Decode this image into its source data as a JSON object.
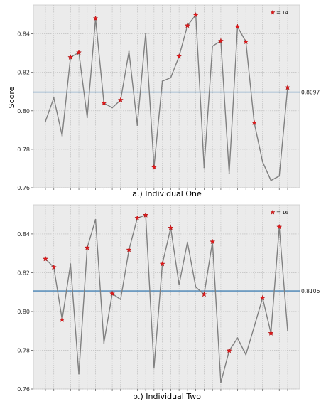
{
  "chart_data": [
    {
      "type": "line",
      "xlabel": "a.) Individual One",
      "ylabel": "Score",
      "ylim": [
        0.76,
        0.855
      ],
      "yticks": [
        "0.76",
        "0.78",
        "0.80",
        "0.82",
        "0.84"
      ],
      "grid": true,
      "legend": {
        "placement": "top-right",
        "marker": "red-star",
        "label": "= 14"
      },
      "mean_line": {
        "value": 0.8097,
        "label": "0.8097",
        "color": "#4682b4"
      },
      "line_color": "#808080",
      "values": [
        0.7945,
        0.8067,
        0.787,
        0.8278,
        0.8303,
        0.7965,
        0.848,
        0.804,
        0.8016,
        0.8056,
        0.8309,
        0.7925,
        0.8402,
        0.7707,
        0.8154,
        0.8172,
        0.8283,
        0.8443,
        0.8498,
        0.7705,
        0.8336,
        0.8363,
        0.7675,
        0.8437,
        0.8359,
        0.7938,
        0.7735,
        0.7638,
        0.7661,
        0.8121
      ],
      "starred_indices": [
        3,
        4,
        6,
        7,
        9,
        13,
        16,
        17,
        18,
        21,
        23,
        24,
        25,
        29
      ]
    },
    {
      "type": "line",
      "xlabel": "b.) Individual Two",
      "ylabel": "",
      "ylim": [
        0.76,
        0.855
      ],
      "yticks": [
        "0.76",
        "0.78",
        "0.80",
        "0.82",
        "0.84"
      ],
      "grid": true,
      "legend": {
        "placement": "top-right",
        "marker": "red-star",
        "label": "= 16"
      },
      "mean_line": {
        "value": 0.8106,
        "label": "0.8106",
        "color": "#4682b4"
      },
      "line_color": "#808080",
      "values": [
        0.8271,
        0.8228,
        0.7958,
        0.8245,
        0.7678,
        0.8329,
        0.8474,
        0.7838,
        0.8092,
        0.8062,
        0.8318,
        0.8482,
        0.8497,
        0.7708,
        0.8245,
        0.8431,
        0.8138,
        0.8357,
        0.8126,
        0.8088,
        0.836,
        0.7633,
        0.7798,
        0.7863,
        0.7777,
        0.7922,
        0.807,
        0.7888,
        0.8436,
        0.79
      ],
      "starred_indices": [
        0,
        1,
        2,
        5,
        8,
        10,
        11,
        12,
        14,
        15,
        19,
        20,
        22,
        26,
        27,
        28
      ]
    }
  ]
}
